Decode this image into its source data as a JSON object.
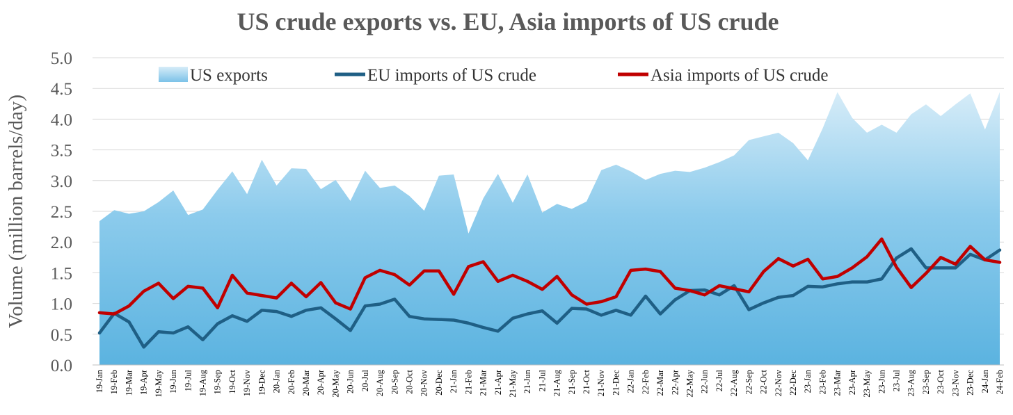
{
  "chart_data": {
    "type": "area",
    "title": "US crude exports vs. EU, Asia imports of US crude",
    "xlabel": "",
    "ylabel": "Volume (million barrels/day)",
    "ylim": [
      0,
      5
    ],
    "yticks": [
      "0.0",
      "0.5",
      "1.0",
      "1.5",
      "2.0",
      "2.5",
      "3.0",
      "3.5",
      "4.0",
      "4.5",
      "5.0"
    ],
    "grid": true,
    "legend_position": "top",
    "categories": [
      "19-Jan",
      "19-Feb",
      "19-Mar",
      "19-Apr",
      "19-May",
      "19-Jun",
      "19-Jul",
      "19-Aug",
      "19-Sep",
      "19-Oct",
      "19-Nov",
      "19-Dec",
      "20-Jan",
      "20-Feb",
      "20-Mar",
      "20-Apr",
      "20-May",
      "20-Jun",
      "20-Jul",
      "20-Aug",
      "20-Sep",
      "20-Oct",
      "20-Nov",
      "20-Dec",
      "21-Jan",
      "21-Feb",
      "21-Mar",
      "21-Apr",
      "21-May",
      "21-Jun",
      "21-Jul",
      "21-Aug",
      "21-Sep",
      "21-Oct",
      "21-Nov",
      "21-Dec",
      "22-Jan",
      "22-Feb",
      "22-Mar",
      "22-Apr",
      "22-May",
      "22-Jun",
      "22-Jul",
      "22-Aug",
      "22-Sep",
      "22-Oct",
      "22-Nov",
      "22-Dec",
      "23-Jan",
      "23-Feb",
      "23-Mar",
      "23-Apr",
      "23-May",
      "23-Jun",
      "23-Jul",
      "23-Aug",
      "23-Sep",
      "23-Oct",
      "23-Nov",
      "23-Dec",
      "24-Jan",
      "24-Feb"
    ],
    "series": [
      {
        "name": "US exports",
        "kind": "area",
        "color_top": "#d6ecf8",
        "color_bottom": "#5bb3e0",
        "values": [
          2.34,
          2.52,
          2.46,
          2.5,
          2.65,
          2.84,
          2.44,
          2.53,
          2.85,
          3.15,
          2.78,
          3.34,
          2.92,
          3.2,
          3.19,
          2.86,
          3.01,
          2.67,
          3.16,
          2.88,
          2.92,
          2.75,
          2.51,
          3.08,
          3.1,
          2.14,
          2.71,
          3.11,
          2.64,
          3.1,
          2.48,
          2.62,
          2.54,
          2.66,
          3.17,
          3.26,
          3.15,
          3.01,
          3.11,
          3.16,
          3.14,
          3.21,
          3.3,
          3.41,
          3.66,
          3.72,
          3.78,
          3.61,
          3.33,
          3.85,
          4.44,
          4.02,
          3.78,
          3.91,
          3.78,
          4.08,
          4.24,
          4.05,
          4.24,
          4.42,
          3.83,
          4.44
        ]
      },
      {
        "name": "EU imports of US crude",
        "kind": "line",
        "color": "#1f5f85",
        "values": [
          0.52,
          0.84,
          0.7,
          0.29,
          0.54,
          0.52,
          0.62,
          0.41,
          0.67,
          0.8,
          0.71,
          0.89,
          0.87,
          0.79,
          0.89,
          0.93,
          0.75,
          0.56,
          0.96,
          0.99,
          1.07,
          0.79,
          0.75,
          0.74,
          0.73,
          0.68,
          0.61,
          0.55,
          0.76,
          0.83,
          0.88,
          0.68,
          0.92,
          0.91,
          0.81,
          0.89,
          0.81,
          1.12,
          0.83,
          1.06,
          1.21,
          1.22,
          1.14,
          1.29,
          0.9,
          1.01,
          1.1,
          1.13,
          1.28,
          1.27,
          1.32,
          1.35,
          1.35,
          1.4,
          1.74,
          1.89,
          1.58,
          1.58,
          1.58,
          1.8,
          1.71,
          1.87
        ]
      },
      {
        "name": "Asia imports of US crude",
        "kind": "line",
        "color": "#c00000",
        "values": [
          0.85,
          0.83,
          0.96,
          1.2,
          1.33,
          1.08,
          1.28,
          1.25,
          0.93,
          1.46,
          1.17,
          1.13,
          1.09,
          1.33,
          1.11,
          1.34,
          1.01,
          0.91,
          1.42,
          1.54,
          1.47,
          1.3,
          1.53,
          1.53,
          1.15,
          1.6,
          1.68,
          1.36,
          1.46,
          1.36,
          1.23,
          1.44,
          1.14,
          0.99,
          1.03,
          1.11,
          1.54,
          1.56,
          1.52,
          1.25,
          1.21,
          1.14,
          1.29,
          1.24,
          1.19,
          1.52,
          1.73,
          1.61,
          1.72,
          1.4,
          1.44,
          1.58,
          1.76,
          2.05,
          1.59,
          1.26,
          1.49,
          1.75,
          1.64,
          1.93,
          1.71,
          1.67
        ]
      }
    ]
  }
}
